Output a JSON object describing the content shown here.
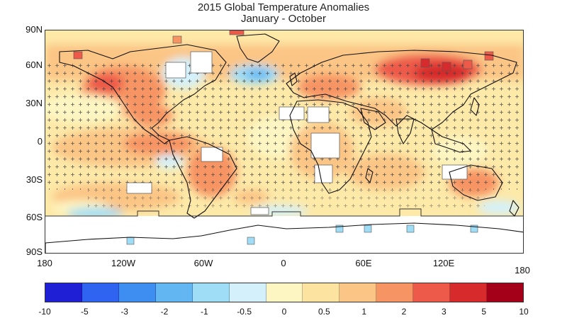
{
  "title": "2015 Global Temperature Anomalies",
  "subtitle": "January - October",
  "lat_labels": [
    "90N",
    "60N",
    "30N",
    "0",
    "30S",
    "60S",
    "90S"
  ],
  "lon_labels": [
    "180",
    "120W",
    "60W",
    "0",
    "60E",
    "120E",
    "180"
  ],
  "colorbar": {
    "ticks": [
      "-10",
      "-5",
      "-3",
      "-2",
      "-1",
      "-0.5",
      "0",
      "0.5",
      "1",
      "2",
      "3",
      "5",
      "10"
    ],
    "colors": [
      "#1f1fd6",
      "#2f64f0",
      "#3d8ef0",
      "#62b6f2",
      "#9fdcf6",
      "#d4f1fb",
      "#fdf6c3",
      "#fde3a0",
      "#fbc585",
      "#f79463",
      "#ed5a4a",
      "#d62a2c",
      "#a4001a"
    ]
  },
  "colors": {
    "land_outline": "#111111",
    "missing_data": "#ffffff",
    "significance_marker": "#444444"
  }
}
